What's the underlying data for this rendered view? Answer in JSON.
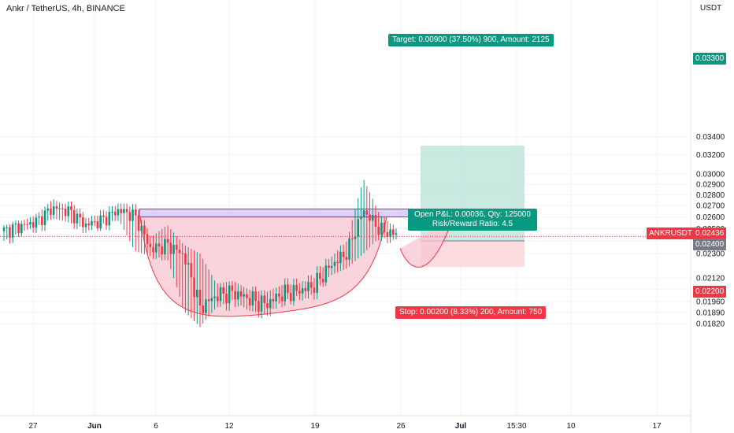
{
  "header": {
    "symbol_title": "Ankr / TetherUS, 4h, BINANCE",
    "unit": "USDT"
  },
  "colors": {
    "up": "#089981",
    "down": "#f23645",
    "target_zone": "#b2dfd4",
    "stop_zone": "#fbd3d6",
    "cup_fill": "#f8c5d0",
    "resistance_box": "#d8c8f5",
    "resistance_border": "#9c27b0"
  },
  "position": {
    "target_label": "Target: 0.00900 (37.50%) 900, Amount: 2125",
    "stop_label": "Stop: 0.00200 (8.33%) 200, Amount: 750",
    "pnl_line1": "Open P&L: 0.00036, Qty: 125000",
    "pnl_line2": "Risk/Reward Ratio: 4.5",
    "entry": 0.024,
    "target": 0.033,
    "stop": 0.022
  },
  "price_tags": {
    "target": "0.03300",
    "last_symbol": "ANKRUSDT",
    "last_price": "0.02436",
    "entry": "0.02400",
    "stop": "0.02200"
  },
  "chart_data": {
    "type": "candlestick",
    "title": "Ankr / TetherUS, 4h, BINANCE",
    "ylabel": "USDT",
    "y_scale": "log",
    "ylim": [
      0.0176,
      0.0355
    ],
    "y_ticks": [
      "0.03400",
      "0.03200",
      "0.03000",
      "0.02900",
      "0.02800",
      "0.02700",
      "0.02600",
      "0.02500",
      "0.02400",
      "0.02300",
      "0.02120",
      "0.02040",
      "0.01960",
      "0.01890",
      "0.01820"
    ],
    "x_ticks": [
      "27",
      "Jun",
      "6",
      "12",
      "19",
      "26",
      "Jul",
      "15:30",
      "10",
      "17"
    ],
    "last_price": 0.02436,
    "waypoints": {
      "close": [
        0.0248,
        0.0252,
        0.0256,
        0.0268,
        0.0265,
        0.0253,
        0.0257,
        0.0266,
        0.0261,
        0.0233,
        0.0237,
        0.0229,
        0.0192,
        0.02,
        0.0202,
        0.0198,
        0.0194,
        0.0201,
        0.0203,
        0.0207,
        0.0221,
        0.0231,
        0.0266,
        0.0249,
        0.0245
      ],
      "high": [
        0.0252,
        0.0256,
        0.0262,
        0.0276,
        0.0268,
        0.0258,
        0.0262,
        0.0268,
        0.0266,
        0.0243,
        0.0253,
        0.0237,
        0.023,
        0.0208,
        0.021,
        0.0204,
        0.0202,
        0.0207,
        0.0208,
        0.0212,
        0.0227,
        0.024,
        0.0295,
        0.0262,
        0.025
      ],
      "low": [
        0.024,
        0.0247,
        0.0252,
        0.0259,
        0.0255,
        0.025,
        0.0254,
        0.0258,
        0.0232,
        0.0228,
        0.0226,
        0.019,
        0.018,
        0.0192,
        0.0197,
        0.019,
        0.0188,
        0.0196,
        0.02,
        0.0203,
        0.0214,
        0.0219,
        0.023,
        0.0243,
        0.0242
      ]
    },
    "annotations": {
      "resistance_zone": [
        0.026,
        0.0267
      ],
      "cup_low": 0.0188
    }
  }
}
